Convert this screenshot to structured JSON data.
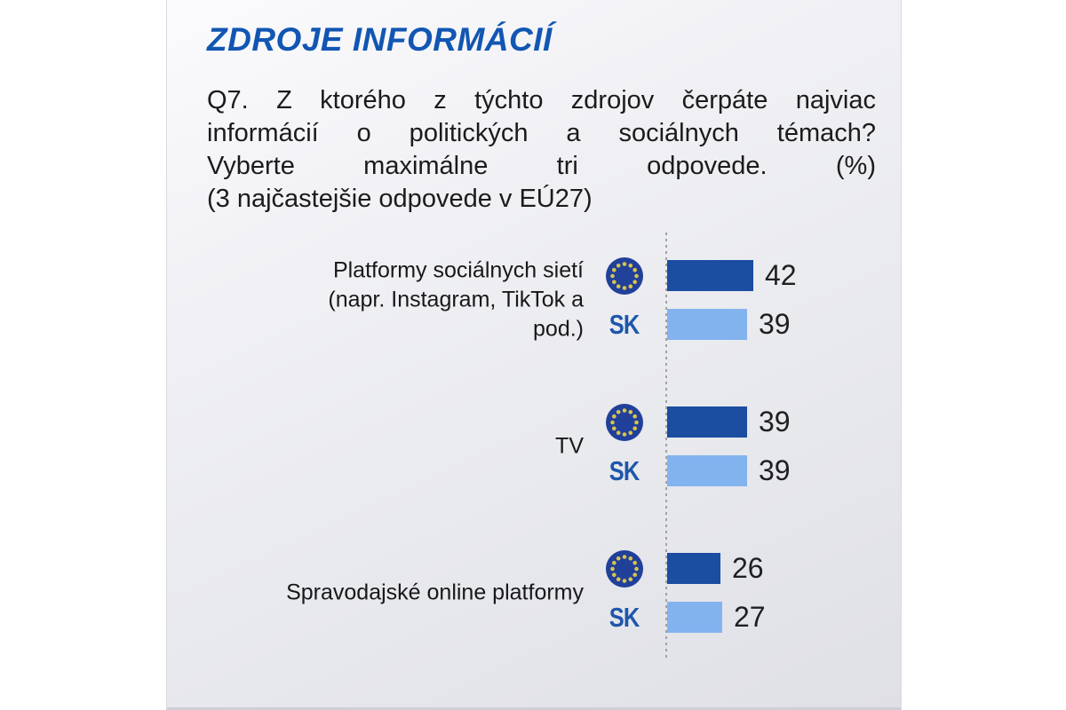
{
  "title": "ZDROJE INFORMÁCIÍ",
  "question": {
    "lines": [
      "Q7. Z ktorého z týchto zdrojov čerpáte najviac",
      "informácií o politických a sociálnych témach?",
      "Vyberte maximálne tri odpovede. (%)",
      "(3 najčastejšie odpovede v EÚ27)"
    ]
  },
  "colors": {
    "title": "#1156b2",
    "eu_bar": "#1b4da1",
    "sk_bar": "#83b3ef",
    "sk_text": "#1e57ab",
    "eu_circle": "#21409a",
    "eu_star": "#d8c44c"
  },
  "chart_data": {
    "type": "bar",
    "orientation": "horizontal",
    "title": "ZDROJE INFORMÁCIÍ",
    "subtitle": "Q7. Z ktorého z týchto zdrojov čerpáte najviac informácií o politických a sociálnych témach? Vyberte maximálne tri odpovede. (%) (3 najčastejšie odpovede v EÚ27)",
    "categories": [
      "Platformy sociálnych sietí (napr. Instagram, TikTok a pod.)",
      "TV",
      "Spravodajské online platformy"
    ],
    "series": [
      {
        "name": "EÚ27",
        "marker": "eu-flag-icon",
        "values": [
          42,
          39,
          26
        ]
      },
      {
        "name": "SK",
        "marker": "sk-text-badge",
        "values": [
          39,
          39,
          27
        ]
      }
    ],
    "value_unit": "%",
    "xlim": [
      0,
      45
    ],
    "grid": false,
    "legend_position": "inline-left-of-bars",
    "value_labels": "right-of-bars"
  },
  "rows": [
    {
      "label_lines": [
        "Platformy sociálnych sietí",
        "(napr. Instagram, TikTok a",
        "pod.)"
      ]
    },
    {
      "label_lines": [
        "TV"
      ]
    },
    {
      "label_lines": [
        "Spravodajské online platformy"
      ]
    }
  ],
  "sk_label": "SK"
}
